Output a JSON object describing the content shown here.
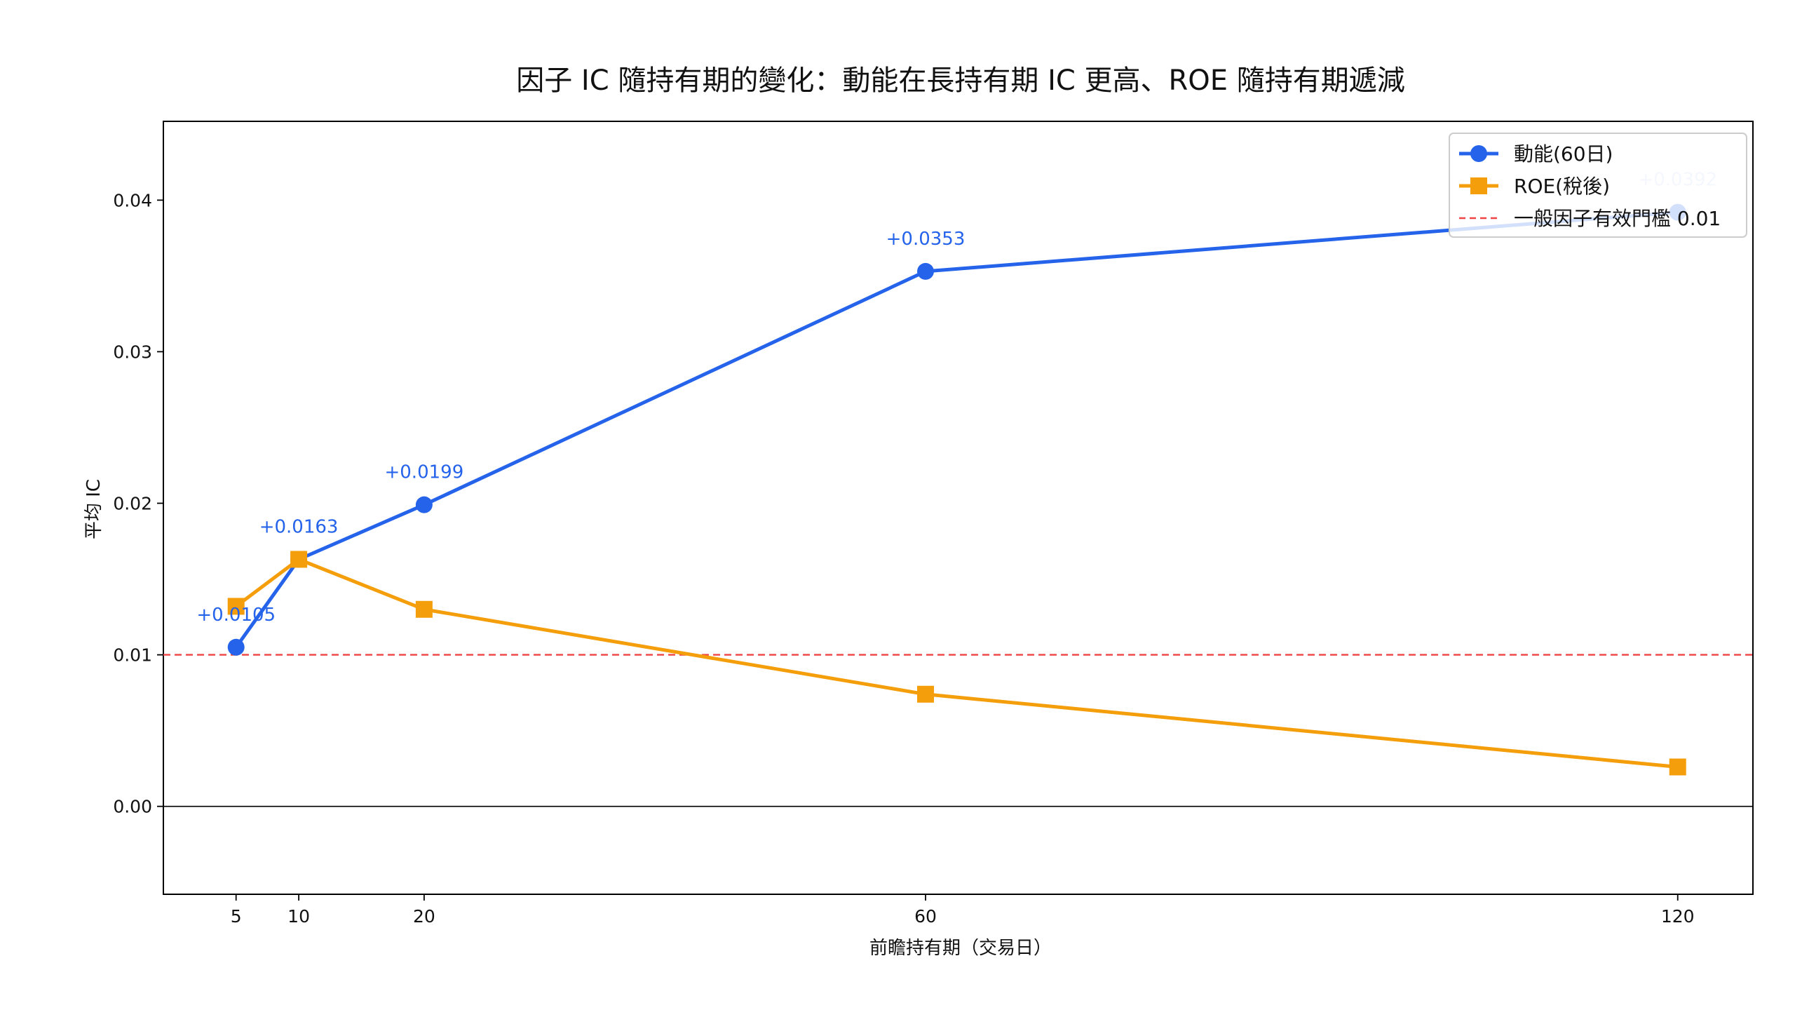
{
  "chart_data": {
    "type": "line",
    "title": "因子 IC 隨持有期的變化：動能在長持有期 IC 更高、ROE 隨持有期遞減",
    "xlabel": "前瞻持有期（交易日）",
    "ylabel": "平均 IC",
    "x": [
      5,
      10,
      20,
      60,
      120
    ],
    "xticks": [
      5,
      10,
      20,
      60,
      120
    ],
    "xlim": [
      -0.8,
      126
    ],
    "ylim": [
      -0.0058,
      0.0452
    ],
    "yticks": [
      0.0,
      0.01,
      0.02,
      0.03,
      0.04
    ],
    "ytick_labels": [
      "0.00",
      "0.01",
      "0.02",
      "0.03",
      "0.04"
    ],
    "series": [
      {
        "name": "動能(60日)",
        "values": [
          0.0105,
          0.0163,
          0.0199,
          0.0353,
          0.0392
        ],
        "labels": [
          "+0.0105",
          "+0.0163",
          "+0.0199",
          "+0.0353",
          "+0.0392"
        ],
        "color": "#2563eb",
        "marker": "circle"
      },
      {
        "name": "ROE(稅後)",
        "values": [
          0.0132,
          0.0163,
          0.013,
          0.0074,
          0.0026
        ],
        "color": "#f59e0b",
        "marker": "square"
      }
    ],
    "reference_line": {
      "name": "一般因子有效門檻 0.01",
      "value": 0.01,
      "color": "#ef4444",
      "style": "dashed"
    },
    "zero_line": {
      "value": 0.0,
      "color": "#000000"
    },
    "legend_position": "top-right",
    "grid": false
  }
}
